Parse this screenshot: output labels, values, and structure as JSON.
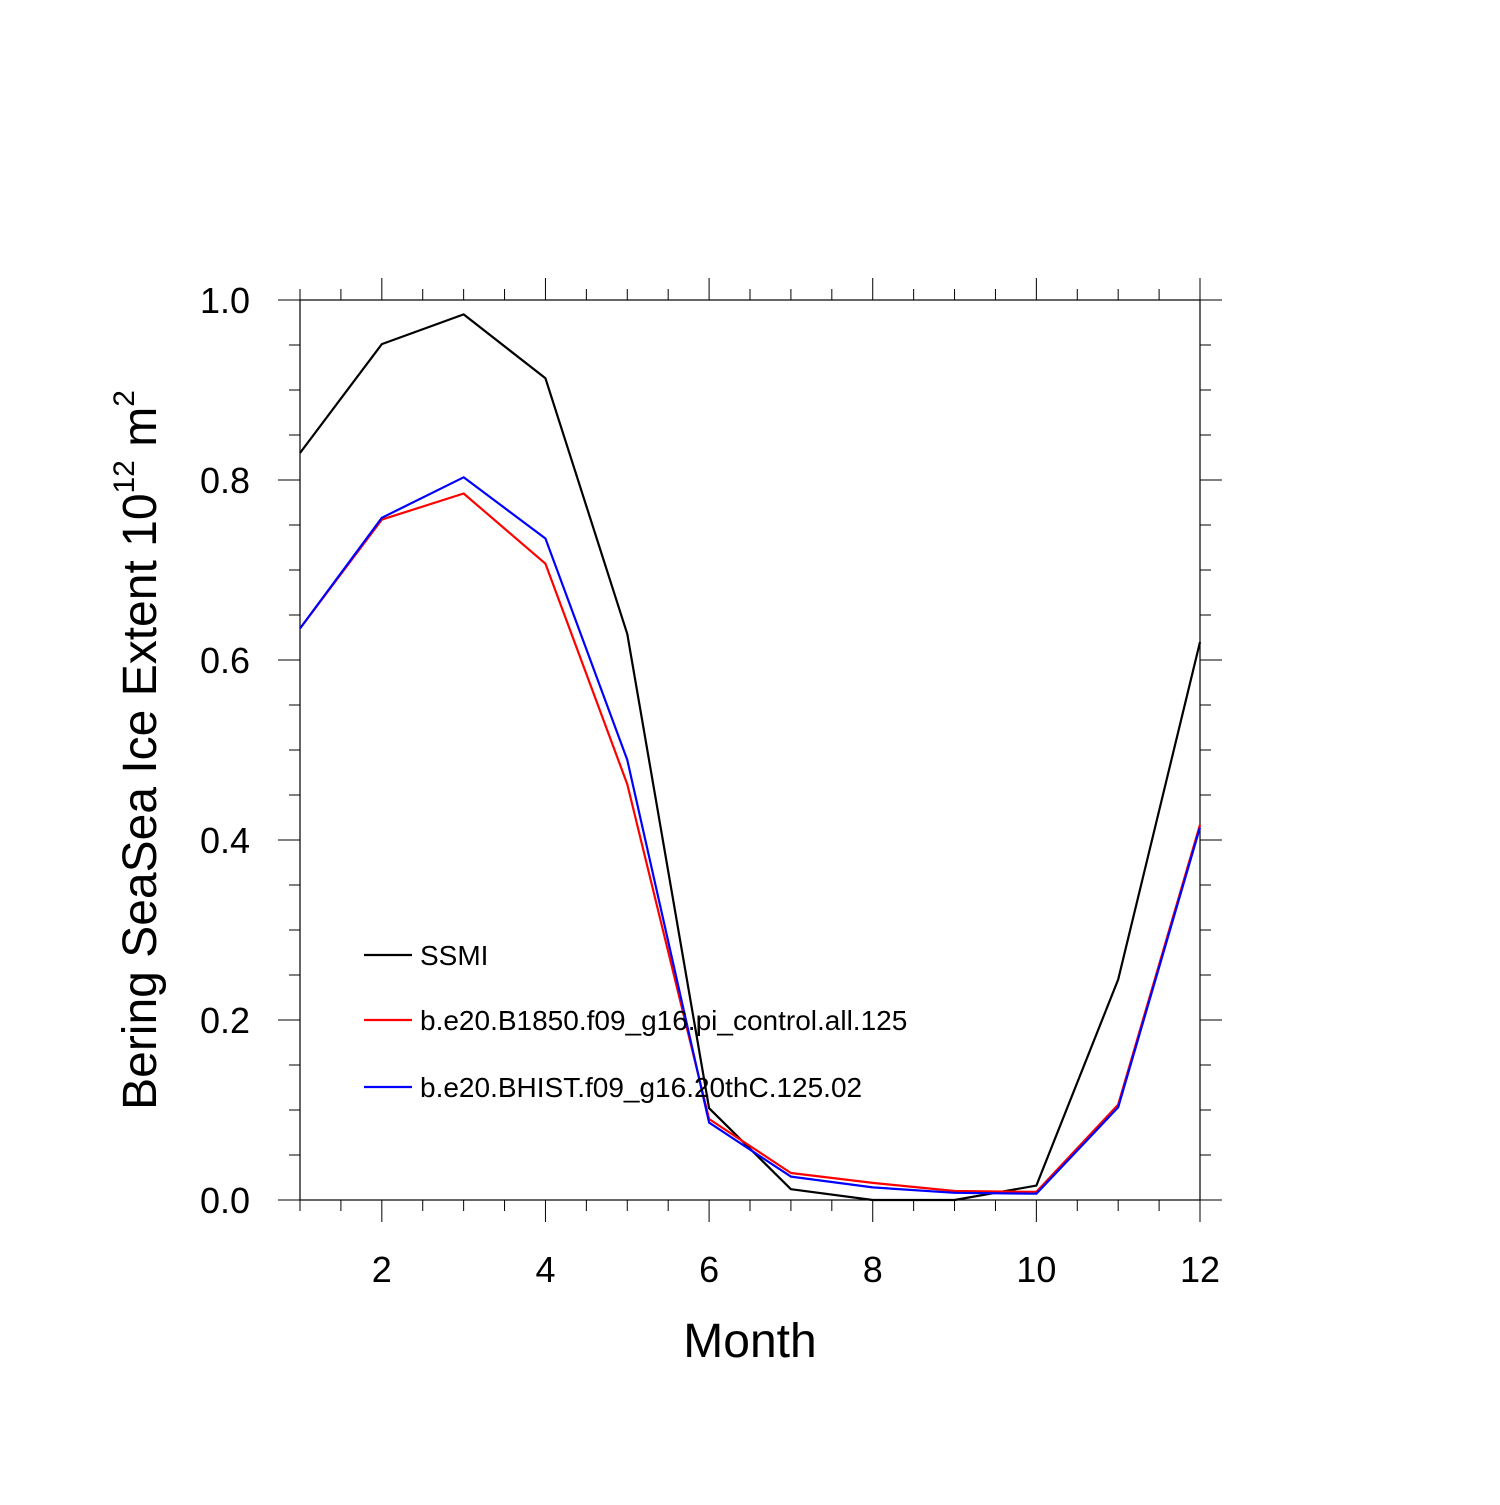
{
  "chart_data": {
    "type": "line",
    "title": "",
    "xlabel": "Month",
    "ylabel": {
      "main": "Bering SeaSea Ice Extent 10",
      "exponent": "12",
      "unit": " m",
      "unit_exponent": "2"
    },
    "xlim": [
      1,
      12
    ],
    "ylim": [
      0,
      1.0
    ],
    "grid": false,
    "legend_position": "lower-left (inside plot)",
    "x_ticks": [
      2,
      4,
      6,
      8,
      10,
      12
    ],
    "x_tick_labels": [
      "2",
      "4",
      "6",
      "8",
      "10",
      "12"
    ],
    "y_ticks": [
      0,
      0.2,
      0.4,
      0.6,
      0.8,
      1.0
    ],
    "y_tick_labels": [
      "0.0",
      "0.2",
      "0.4",
      "0.6",
      "0.8",
      "1.0"
    ],
    "x": [
      1,
      2,
      3,
      4,
      5,
      6,
      7,
      8,
      9,
      10,
      11,
      12
    ],
    "series": [
      {
        "name": "SSMI",
        "color": "#000000",
        "values": [
          0.83,
          0.951,
          0.984,
          0.913,
          0.629,
          0.102,
          0.012,
          0.0,
          0.0,
          0.016,
          0.245,
          0.62
        ]
      },
      {
        "name": "b.e20.B1850.f09_g16.pi_control.all.125",
        "color": "#ff0000",
        "values": [
          0.635,
          0.756,
          0.785,
          0.707,
          0.462,
          0.09,
          0.03,
          0.019,
          0.01,
          0.009,
          0.106,
          0.417
        ]
      },
      {
        "name": "b.e20.BHIST.f09_g16.20thC.125.02",
        "color": "#0000ff",
        "values": [
          0.635,
          0.758,
          0.803,
          0.735,
          0.489,
          0.086,
          0.026,
          0.014,
          0.008,
          0.007,
          0.103,
          0.414
        ]
      }
    ]
  }
}
